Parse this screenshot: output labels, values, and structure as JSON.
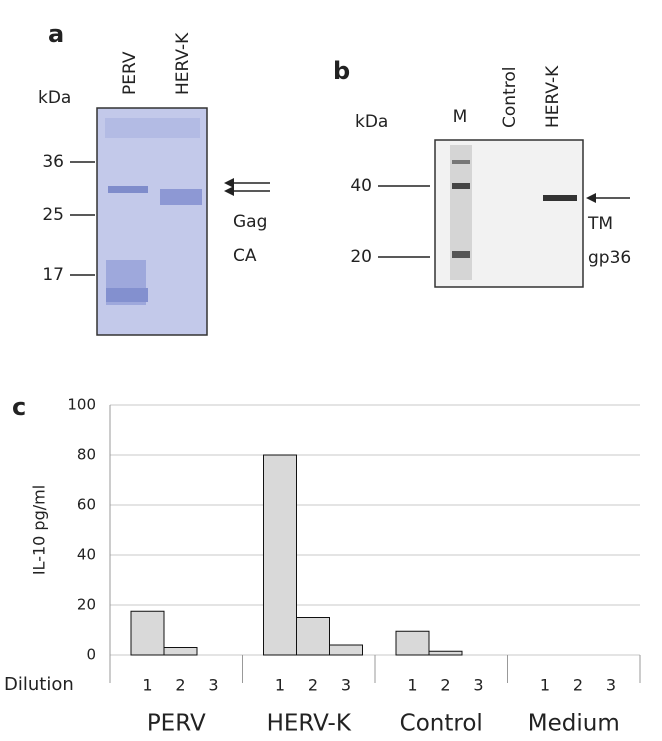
{
  "panel_a": {
    "label": "a",
    "unit": "kDa",
    "lanes": [
      "PERV",
      "HERV-K"
    ],
    "markers": [
      36,
      25,
      17
    ],
    "annotations": [
      "Gag",
      "CA"
    ]
  },
  "panel_b": {
    "label": "b",
    "unit": "kDa",
    "lanes": [
      "M",
      "Control",
      "HERV-K"
    ],
    "markers": [
      40,
      20
    ],
    "annotations": [
      "TM",
      "gp36"
    ]
  },
  "chart_data": {
    "type": "bar",
    "panel_label": "c",
    "y_label": "IL-10 pg/ml",
    "x_label": "Dilution",
    "categories": [
      "PERV",
      "HERV-K",
      "Control",
      "Medium"
    ],
    "series": [
      {
        "name": "1",
        "color": "#d9d9d9",
        "values": [
          17.5,
          80,
          9.5,
          0
        ]
      },
      {
        "name": "2",
        "color": "#d9d9d9",
        "values": [
          3,
          15,
          1.5,
          0
        ]
      },
      {
        "name": "3",
        "color": "#d9d9d9",
        "values": [
          0,
          4,
          0,
          0
        ]
      }
    ],
    "ylim": [
      0,
      100
    ],
    "yticks": [
      0,
      20,
      40,
      60,
      80,
      100
    ],
    "grid": true
  }
}
